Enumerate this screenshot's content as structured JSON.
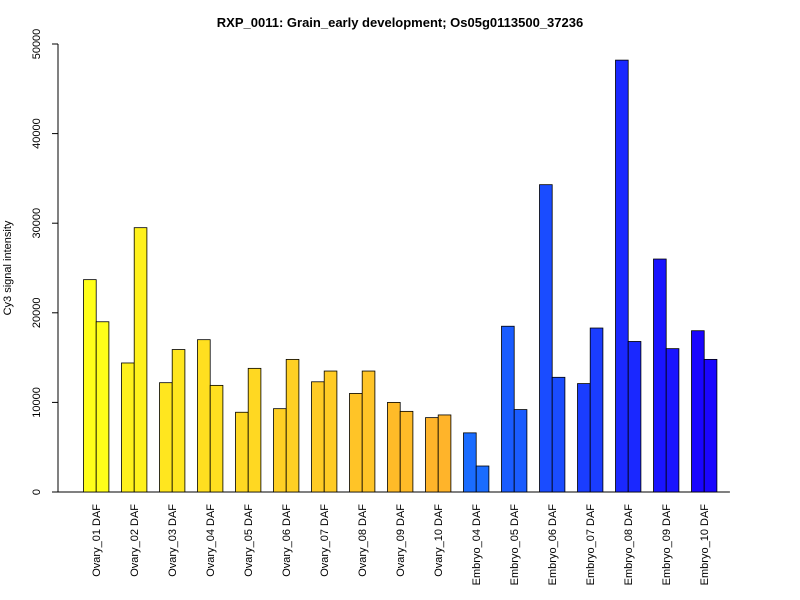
{
  "chart_data": {
    "type": "bar",
    "title": "RXP_0011: Grain_early development; Os05g0113500_37236",
    "xlabel": "",
    "ylabel": "Cy3 signal intensity",
    "ylim": [
      0,
      50000
    ],
    "yticks": [
      0,
      10000,
      20000,
      30000,
      40000,
      50000
    ],
    "grid": false,
    "categories": [
      "Ovary_01 DAF",
      "Ovary_02 DAF",
      "Ovary_03 DAF",
      "Ovary_04 DAF",
      "Ovary_05 DAF",
      "Ovary_06 DAF",
      "Ovary_07 DAF",
      "Ovary_08 DAF",
      "Ovary_09 DAF",
      "Ovary_10 DAF",
      "Embryo_04 DAF",
      "Embryo_05 DAF",
      "Embryo_06 DAF",
      "Embryo_07 DAF",
      "Embryo_08 DAF",
      "Embryo_09 DAF",
      "Embryo_10 DAF"
    ],
    "bars_per_category": 2,
    "values": [
      [
        23700,
        19000
      ],
      [
        14400,
        29500
      ],
      [
        12200,
        15900
      ],
      [
        17000,
        11900
      ],
      [
        8900,
        13800
      ],
      [
        9300,
        14800
      ],
      [
        12300,
        13500
      ],
      [
        11000,
        13500
      ],
      [
        10000,
        9000
      ],
      [
        8300,
        8600
      ],
      [
        6600,
        2900
      ],
      [
        18500,
        9200
      ],
      [
        34300,
        12800
      ],
      [
        12100,
        18300
      ],
      [
        48200,
        16800
      ],
      [
        26000,
        16000
      ],
      [
        18000,
        14800
      ]
    ],
    "colors": [
      "#ffff1a",
      "#fff11c",
      "#ffe61f",
      "#ffdf20",
      "#ffd822",
      "#ffd024",
      "#ffcb25",
      "#ffc427",
      "#ffbb28",
      "#ffb42a",
      "#1a6cff",
      "#1a5cff",
      "#1a4cff",
      "#1a3dff",
      "#1a28ff",
      "#1a14ff",
      "#1a05ff"
    ]
  }
}
